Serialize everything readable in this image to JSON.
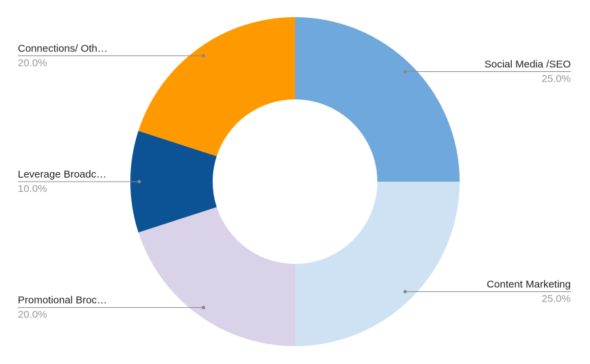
{
  "chart_data": {
    "type": "donut",
    "categories": [
      "Social Media /SEO",
      "Content Marketing",
      "Promotional Broc…",
      "Leverage Broadc…",
      "Connections/ Oth…"
    ],
    "values": [
      25,
      25,
      20,
      10,
      20
    ],
    "value_labels": [
      "25.0%",
      "25.0%",
      "20.0%",
      "10.0%",
      "20.0%"
    ],
    "colors": [
      "#6fa8dc",
      "#cfe2f3",
      "#d9d2e9",
      "#0b5394",
      "#ff9900"
    ]
  }
}
